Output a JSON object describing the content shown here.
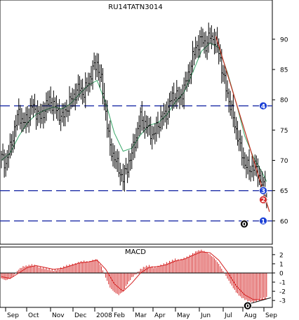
{
  "chart_data": [
    {
      "type": "bar",
      "subtype": "ohlc-price",
      "title": "RU14TATN3014",
      "ylim": [
        56.5,
        93
      ],
      "y_ticks": [
        60,
        65,
        70,
        75,
        80,
        85,
        90
      ],
      "y_tick_labels": [
        "60",
        "65",
        "70",
        "75",
        "80",
        "85",
        "90"
      ],
      "grid": false,
      "x_labels": [
        "Sep",
        "Oct",
        "Nov",
        "Dec",
        "2008",
        "Feb",
        "Mar",
        "Apr",
        "May",
        "Jun",
        "Jul",
        "Aug",
        "Sep"
      ],
      "close_series": [
        [
          0,
          70.5
        ],
        [
          3,
          69.5
        ],
        [
          6,
          72
        ],
        [
          9,
          75
        ],
        [
          12,
          78
        ],
        [
          15,
          76
        ],
        [
          18,
          77
        ],
        [
          21,
          79
        ],
        [
          24,
          78
        ],
        [
          27,
          77
        ],
        [
          30,
          78.5
        ],
        [
          33,
          80
        ],
        [
          36,
          79
        ],
        [
          39,
          78
        ],
        [
          42,
          77
        ],
        [
          45,
          78.5
        ],
        [
          48,
          80
        ],
        [
          51,
          81
        ],
        [
          54,
          82
        ],
        [
          57,
          81
        ],
        [
          60,
          83
        ],
        [
          63,
          85
        ],
        [
          66,
          86
        ],
        [
          69,
          83
        ],
        [
          72,
          78
        ],
        [
          75,
          72
        ],
        [
          78,
          70.5
        ],
        [
          81,
          68.5
        ],
        [
          84,
          67
        ],
        [
          87,
          69
        ],
        [
          90,
          71
        ],
        [
          93,
          74
        ],
        [
          96,
          77
        ],
        [
          99,
          76
        ],
        [
          102,
          75
        ],
        [
          105,
          74
        ],
        [
          108,
          76
        ],
        [
          111,
          77
        ],
        [
          114,
          78
        ],
        [
          117,
          80
        ],
        [
          120,
          81
        ],
        [
          123,
          80
        ],
        [
          126,
          82
        ],
        [
          129,
          84
        ],
        [
          132,
          87
        ],
        [
          135,
          89
        ],
        [
          138,
          90
        ],
        [
          141,
          89
        ],
        [
          144,
          90.5
        ],
        [
          147,
          90
        ],
        [
          150,
          88
        ],
        [
          153,
          84
        ],
        [
          156,
          81
        ],
        [
          159,
          78
        ],
        [
          162,
          75
        ],
        [
          165,
          72
        ],
        [
          168,
          69.5
        ],
        [
          171,
          68.5
        ],
        [
          174,
          69
        ],
        [
          177,
          68
        ],
        [
          180,
          66
        ],
        [
          183,
          64
        ]
      ],
      "moving_average": [
        [
          0,
          70
        ],
        [
          6,
          71.2
        ],
        [
          12,
          74
        ],
        [
          18,
          76.2
        ],
        [
          24,
          77.6
        ],
        [
          30,
          78.3
        ],
        [
          36,
          78.8
        ],
        [
          42,
          78.5
        ],
        [
          48,
          79.4
        ],
        [
          54,
          81
        ],
        [
          60,
          82.4
        ],
        [
          66,
          83.2
        ],
        [
          72,
          79.5
        ],
        [
          78,
          74.5
        ],
        [
          84,
          71.5
        ],
        [
          90,
          72
        ],
        [
          96,
          74.2
        ],
        [
          102,
          75.8
        ],
        [
          108,
          76.2
        ],
        [
          114,
          77.5
        ],
        [
          120,
          79.6
        ],
        [
          126,
          81.2
        ],
        [
          132,
          84.5
        ],
        [
          138,
          88
        ],
        [
          144,
          89.4
        ],
        [
          150,
          88.6
        ],
        [
          156,
          84.5
        ],
        [
          162,
          79.5
        ],
        [
          168,
          74
        ],
        [
          174,
          70.5
        ],
        [
          180,
          68
        ],
        [
          183,
          66.5
        ]
      ],
      "down_trendline": [
        [
          148,
          90.5
        ],
        [
          185,
          61.5
        ]
      ],
      "horizontal_levels": [
        {
          "marker": "1",
          "value": 60,
          "marker_color": "#1a3fd6"
        },
        {
          "marker": "3",
          "value": 65,
          "marker_color": "#1a3fd6"
        },
        {
          "marker": "4",
          "value": 79,
          "marker_color": "#1a3fd6"
        }
      ],
      "markers": [
        {
          "label": "2",
          "value": 63.5,
          "color": "#d42a2a"
        },
        {
          "label": "0",
          "value": 59.5,
          "color": "#000000"
        }
      ],
      "colors": {
        "price": "#000000",
        "moving_average": "#3aa86a",
        "trendline": "#c03020",
        "levels": "#1f2fa8"
      }
    },
    {
      "type": "bar",
      "subtype": "macd-histogram",
      "title": "MACD",
      "ylim": [
        -3.6,
        2.6
      ],
      "y_ticks": [
        2,
        1,
        0,
        -1,
        -2,
        -3
      ],
      "y_tick_labels": [
        "2",
        "1",
        "0",
        "-1",
        "-2",
        "-3"
      ],
      "histogram": [
        [
          0,
          -0.6
        ],
        [
          3,
          -0.8
        ],
        [
          6,
          -0.6
        ],
        [
          9,
          -0.2
        ],
        [
          12,
          0.4
        ],
        [
          15,
          0.7
        ],
        [
          18,
          0.8
        ],
        [
          21,
          0.9
        ],
        [
          24,
          0.8
        ],
        [
          27,
          0.6
        ],
        [
          30,
          0.5
        ],
        [
          33,
          0.4
        ],
        [
          36,
          0.3
        ],
        [
          39,
          0.4
        ],
        [
          42,
          0.6
        ],
        [
          45,
          0.8
        ],
        [
          48,
          0.9
        ],
        [
          51,
          1.0
        ],
        [
          54,
          1.2
        ],
        [
          57,
          1.3
        ],
        [
          60,
          1.2
        ],
        [
          63,
          1.4
        ],
        [
          66,
          1.5
        ],
        [
          69,
          0.7
        ],
        [
          72,
          -0.5
        ],
        [
          75,
          -1.6
        ],
        [
          78,
          -2.1
        ],
        [
          81,
          -2.4
        ],
        [
          84,
          -2.0
        ],
        [
          87,
          -1.2
        ],
        [
          90,
          -0.5
        ],
        [
          93,
          -0.1
        ],
        [
          96,
          0.4
        ],
        [
          99,
          0.7
        ],
        [
          102,
          0.8
        ],
        [
          105,
          0.6
        ],
        [
          108,
          0.7
        ],
        [
          111,
          0.9
        ],
        [
          114,
          1.1
        ],
        [
          117,
          1.3
        ],
        [
          120,
          1.5
        ],
        [
          123,
          1.4
        ],
        [
          126,
          1.6
        ],
        [
          129,
          1.8
        ],
        [
          132,
          2.1
        ],
        [
          135,
          2.4
        ],
        [
          138,
          2.5
        ],
        [
          141,
          2.3
        ],
        [
          144,
          2.0
        ],
        [
          147,
          1.6
        ],
        [
          150,
          1.0
        ],
        [
          153,
          0.2
        ],
        [
          156,
          -0.6
        ],
        [
          159,
          -1.4
        ],
        [
          162,
          -2.1
        ],
        [
          165,
          -2.6
        ],
        [
          168,
          -2.9
        ],
        [
          171,
          -3.1
        ],
        [
          174,
          -3.2
        ],
        [
          177,
          -3.0
        ],
        [
          180,
          -2.8
        ],
        [
          183,
          -2.7
        ]
      ],
      "signal_line": [
        [
          0,
          -0.4
        ],
        [
          6,
          -0.6
        ],
        [
          12,
          0.0
        ],
        [
          18,
          0.6
        ],
        [
          24,
          0.8
        ],
        [
          30,
          0.6
        ],
        [
          36,
          0.4
        ],
        [
          42,
          0.5
        ],
        [
          48,
          0.8
        ],
        [
          54,
          1.1
        ],
        [
          60,
          1.2
        ],
        [
          66,
          1.4
        ],
        [
          72,
          0.4
        ],
        [
          78,
          -1.2
        ],
        [
          84,
          -2.0
        ],
        [
          90,
          -1.1
        ],
        [
          96,
          0.0
        ],
        [
          102,
          0.6
        ],
        [
          108,
          0.7
        ],
        [
          114,
          0.9
        ],
        [
          120,
          1.3
        ],
        [
          126,
          1.5
        ],
        [
          132,
          1.9
        ],
        [
          138,
          2.3
        ],
        [
          144,
          2.2
        ],
        [
          150,
          1.4
        ],
        [
          156,
          0.1
        ],
        [
          162,
          -1.4
        ],
        [
          168,
          -2.4
        ],
        [
          174,
          -2.9
        ],
        [
          180,
          -2.9
        ],
        [
          183,
          -2.8
        ]
      ],
      "divergence_line": [
        [
          168,
          -3.5
        ],
        [
          186,
          -2.7
        ]
      ],
      "markers": [
        {
          "label": "0",
          "color": "#000000"
        }
      ],
      "colors": {
        "histogram": "#d42020",
        "signal_line": "#d42020",
        "zero_line": "#000000"
      }
    }
  ]
}
